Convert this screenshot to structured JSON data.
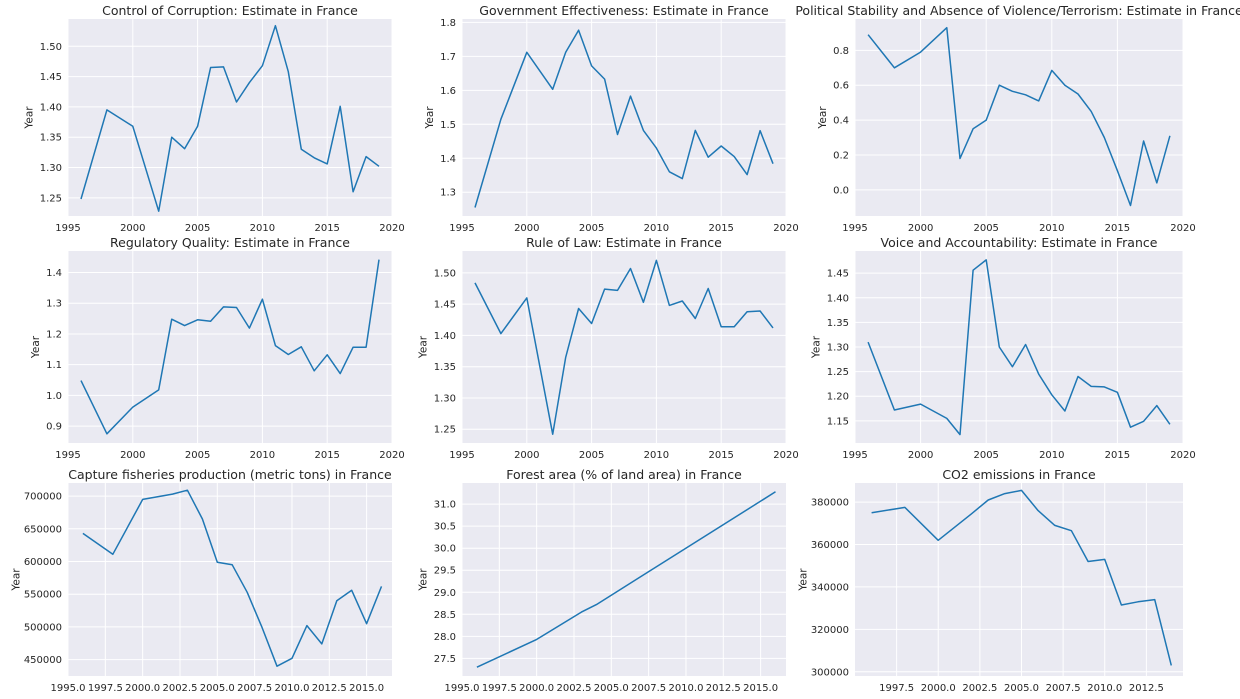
{
  "chart_data": [
    {
      "type": "line",
      "title": "Control of Corruption: Estimate in France",
      "ylabel": "Year",
      "xlim": [
        1995,
        2020
      ],
      "ylim": [
        1.22,
        1.545
      ],
      "xticks": [
        1995,
        2000,
        2005,
        2010,
        2015,
        2020
      ],
      "yticks": [
        1.25,
        1.3,
        1.35,
        1.4,
        1.45,
        1.5
      ],
      "ytick_labels": [
        "1.25",
        "1.30",
        "1.35",
        "1.40",
        "1.45",
        "1.50"
      ],
      "x": [
        1996,
        1998,
        2000,
        2002,
        2003,
        2004,
        2005,
        2006,
        2007,
        2008,
        2009,
        2010,
        2011,
        2012,
        2013,
        2014,
        2015,
        2016,
        2017,
        2018,
        2019
      ],
      "y": [
        1.248,
        1.395,
        1.368,
        1.228,
        1.35,
        1.331,
        1.368,
        1.465,
        1.466,
        1.408,
        1.44,
        1.468,
        1.534,
        1.458,
        1.33,
        1.316,
        1.306,
        1.401,
        1.26,
        1.318,
        1.302
      ]
    },
    {
      "type": "line",
      "title": "Government Effectiveness: Estimate in France",
      "ylabel": "Year",
      "xlim": [
        1995,
        2020
      ],
      "ylim": [
        1.23,
        1.81
      ],
      "xticks": [
        1995,
        2000,
        2005,
        2010,
        2015,
        2020
      ],
      "yticks": [
        1.3,
        1.4,
        1.5,
        1.6,
        1.7,
        1.8
      ],
      "ytick_labels": [
        "1.3",
        "1.4",
        "1.5",
        "1.6",
        "1.7",
        "1.8"
      ],
      "x": [
        1996,
        1998,
        2000,
        2002,
        2003,
        2004,
        2005,
        2006,
        2007,
        2008,
        2009,
        2010,
        2011,
        2012,
        2013,
        2014,
        2015,
        2016,
        2017,
        2018,
        2019
      ],
      "y": [
        1.255,
        1.515,
        1.712,
        1.603,
        1.712,
        1.777,
        1.672,
        1.633,
        1.47,
        1.583,
        1.482,
        1.43,
        1.36,
        1.34,
        1.482,
        1.403,
        1.436,
        1.405,
        1.352,
        1.481,
        1.384
      ]
    },
    {
      "type": "line",
      "title": "Political Stability and Absence of Violence/Terrorism: Estimate in France",
      "ylabel": "Year",
      "xlim": [
        1995,
        2020
      ],
      "ylim": [
        -0.15,
        0.98
      ],
      "xticks": [
        1995,
        2000,
        2005,
        2010,
        2015,
        2020
      ],
      "yticks": [
        0.0,
        0.2,
        0.4,
        0.6,
        0.8
      ],
      "ytick_labels": [
        "0.0",
        "0.2",
        "0.4",
        "0.6",
        "0.8"
      ],
      "x": [
        1996,
        1998,
        2000,
        2002,
        2003,
        2004,
        2005,
        2006,
        2007,
        2008,
        2009,
        2010,
        2011,
        2012,
        2013,
        2014,
        2015,
        2016,
        2017,
        2018,
        2019
      ],
      "y": [
        0.89,
        0.7,
        0.79,
        0.93,
        0.18,
        0.35,
        0.4,
        0.6,
        0.565,
        0.545,
        0.51,
        0.685,
        0.6,
        0.55,
        0.45,
        0.3,
        0.11,
        -0.09,
        0.28,
        0.04,
        0.31
      ]
    },
    {
      "type": "line",
      "title": "Regulatory Quality: Estimate in France",
      "ylabel": "Year",
      "xlim": [
        1995,
        2020
      ],
      "ylim": [
        0.845,
        1.47
      ],
      "xticks": [
        1995,
        2000,
        2005,
        2010,
        2015,
        2020
      ],
      "yticks": [
        0.9,
        1.0,
        1.1,
        1.2,
        1.3,
        1.4
      ],
      "ytick_labels": [
        "0.9",
        "1.0",
        "1.1",
        "1.2",
        "1.3",
        "1.4"
      ],
      "x": [
        1996,
        1998,
        2000,
        2002,
        2003,
        2004,
        2005,
        2006,
        2007,
        2008,
        2009,
        2010,
        2011,
        2012,
        2013,
        2014,
        2015,
        2016,
        2017,
        2018,
        2019
      ],
      "y": [
        1.048,
        0.875,
        0.962,
        1.018,
        1.248,
        1.227,
        1.246,
        1.241,
        1.288,
        1.286,
        1.219,
        1.313,
        1.162,
        1.133,
        1.158,
        1.08,
        1.132,
        1.071,
        1.157,
        1.157,
        1.442
      ]
    },
    {
      "type": "line",
      "title": "Rule of Law: Estimate in France",
      "ylabel": "Year",
      "xlim": [
        1995,
        2020
      ],
      "ylim": [
        1.228,
        1.535
      ],
      "xticks": [
        1995,
        2000,
        2005,
        2010,
        2015,
        2020
      ],
      "yticks": [
        1.25,
        1.3,
        1.35,
        1.4,
        1.45,
        1.5
      ],
      "ytick_labels": [
        "1.25",
        "1.30",
        "1.35",
        "1.40",
        "1.45",
        "1.50"
      ],
      "x": [
        1996,
        1998,
        2000,
        2002,
        2003,
        2004,
        2005,
        2006,
        2007,
        2008,
        2009,
        2010,
        2011,
        2012,
        2013,
        2014,
        2015,
        2016,
        2017,
        2018,
        2019
      ],
      "y": [
        1.484,
        1.403,
        1.46,
        1.242,
        1.365,
        1.443,
        1.419,
        1.474,
        1.472,
        1.507,
        1.453,
        1.52,
        1.448,
        1.455,
        1.427,
        1.475,
        1.414,
        1.414,
        1.438,
        1.439,
        1.412
      ]
    },
    {
      "type": "line",
      "title": "Voice and Accountability: Estimate in France",
      "ylabel": "Year",
      "xlim": [
        1995,
        2020
      ],
      "ylim": [
        1.105,
        1.495
      ],
      "xticks": [
        1995,
        2000,
        2005,
        2010,
        2015,
        2020
      ],
      "yticks": [
        1.15,
        1.2,
        1.25,
        1.3,
        1.35,
        1.4,
        1.45
      ],
      "ytick_labels": [
        "1.15",
        "1.20",
        "1.25",
        "1.30",
        "1.35",
        "1.40",
        "1.45"
      ],
      "x": [
        1996,
        1998,
        2000,
        2002,
        2003,
        2004,
        2005,
        2006,
        2007,
        2008,
        2009,
        2010,
        2011,
        2012,
        2013,
        2014,
        2015,
        2016,
        2017,
        2018,
        2019
      ],
      "y": [
        1.31,
        1.172,
        1.184,
        1.155,
        1.122,
        1.456,
        1.477,
        1.3,
        1.26,
        1.305,
        1.245,
        1.203,
        1.17,
        1.24,
        1.22,
        1.219,
        1.208,
        1.137,
        1.149,
        1.181,
        1.143
      ]
    },
    {
      "type": "line",
      "title": "Capture fisheries production (metric tons) in France",
      "ylabel": "Year",
      "xlim": [
        1995,
        2016.7
      ],
      "ylim": [
        425000,
        720000
      ],
      "xticks": [
        1995,
        1997.5,
        2000,
        2002.5,
        2005,
        2007.5,
        2010,
        2012.5,
        2015
      ],
      "xtick_labels": [
        "1995.0",
        "1997.5",
        "2000.0",
        "2002.5",
        "2005.0",
        "2007.5",
        "2010.0",
        "2012.5",
        "2015.0"
      ],
      "yticks": [
        450000,
        500000,
        550000,
        600000,
        650000,
        700000
      ],
      "ytick_labels": [
        "450000",
        "500000",
        "550000",
        "600000",
        "650000",
        "700000"
      ],
      "x": [
        1996,
        1998,
        2000,
        2002,
        2003,
        2004,
        2005,
        2006,
        2007,
        2008,
        2009,
        2010,
        2011,
        2012,
        2013,
        2014,
        2015,
        2016
      ],
      "y": [
        643000,
        611000,
        695000,
        703000,
        709000,
        665000,
        599000,
        595000,
        553000,
        499000,
        440000,
        452000,
        502000,
        474000,
        540000,
        556000,
        505000,
        562000
      ]
    },
    {
      "type": "line",
      "title": "Forest area (% of land area) in France",
      "ylabel": "Year",
      "xlim": [
        1995,
        2016.7
      ],
      "ylim": [
        27.1,
        31.48
      ],
      "xticks": [
        1995,
        1997.5,
        2000,
        2002.5,
        2005,
        2007.5,
        2010,
        2012.5,
        2015
      ],
      "xtick_labels": [
        "1995.0",
        "1997.5",
        "2000.0",
        "2002.5",
        "2005.0",
        "2007.5",
        "2010.0",
        "2012.5",
        "2015.0"
      ],
      "yticks": [
        27.5,
        28.0,
        28.5,
        29.0,
        29.5,
        30.0,
        30.5,
        31.0
      ],
      "ytick_labels": [
        "27.5",
        "28.0",
        "28.5",
        "29.0",
        "29.5",
        "30.0",
        "30.5",
        "31.0"
      ],
      "x": [
        1996,
        2000,
        2003,
        2004,
        2016
      ],
      "y": [
        27.3,
        27.93,
        28.55,
        28.72,
        31.28
      ]
    },
    {
      "type": "line",
      "title": "CO2 emissions in France",
      "ylabel": "Year",
      "xlim": [
        1995,
        2014.7
      ],
      "ylim": [
        298000,
        389000
      ],
      "xticks": [
        1997.5,
        2000,
        2002.5,
        2005,
        2007.5,
        2010,
        2012.5
      ],
      "xtick_labels": [
        "1997.5",
        "2000.0",
        "2002.5",
        "2005.0",
        "2007.5",
        "2010.0",
        "2012.5"
      ],
      "yticks": [
        300000,
        320000,
        340000,
        360000,
        380000
      ],
      "ytick_labels": [
        "300000",
        "320000",
        "340000",
        "360000",
        "380000"
      ],
      "x": [
        1996,
        1998,
        2000,
        2002,
        2003,
        2004,
        2005,
        2006,
        2007,
        2008,
        2009,
        2010,
        2011,
        2012,
        2013,
        2014
      ],
      "y": [
        375000,
        377500,
        362000,
        374500,
        381000,
        384000,
        385500,
        376000,
        369000,
        366500,
        352000,
        353000,
        331500,
        333000,
        334000,
        303000
      ]
    }
  ]
}
